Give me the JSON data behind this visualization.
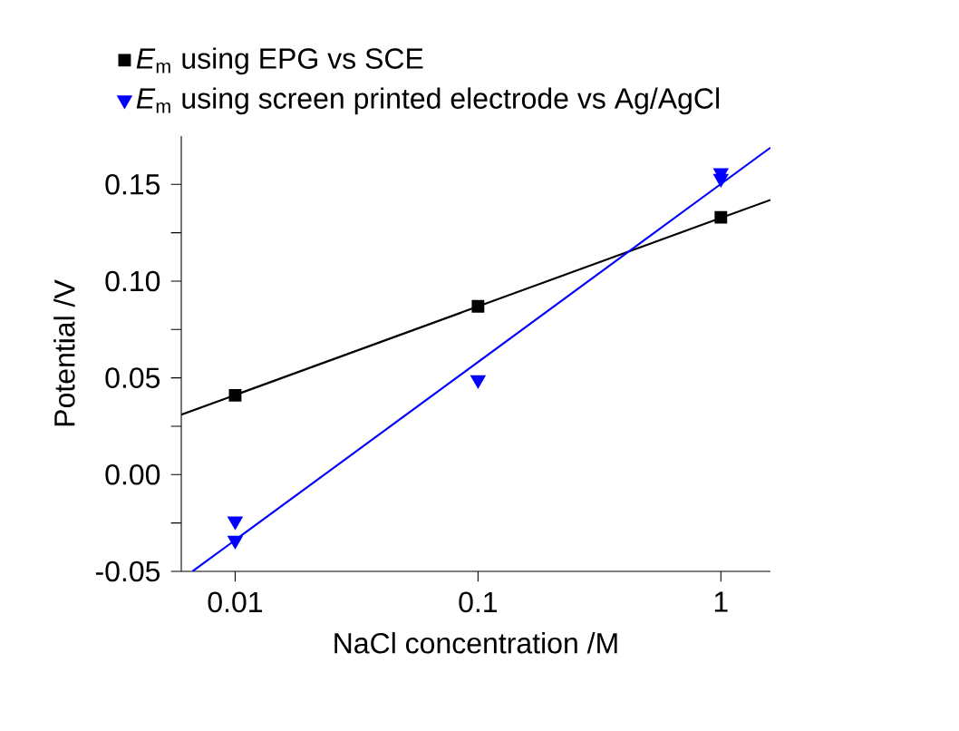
{
  "chart_data": {
    "type": "scatter",
    "xlabel": "NaCl concentration /M",
    "ylabel": "Potential /V",
    "log": "x",
    "xlim": [
      0.006,
      1.6
    ],
    "ylim": [
      -0.05,
      0.175
    ],
    "xticks": [
      0.01,
      0.1,
      1
    ],
    "yticks": [
      {
        "value": -0.05,
        "label": "-0.05"
      },
      {
        "value": -0.025,
        "label": null
      },
      {
        "value": 0,
        "label": "0.00"
      },
      {
        "value": 0.025,
        "label": null
      },
      {
        "value": 0.05,
        "label": "0.05"
      },
      {
        "value": 0.075,
        "label": null
      },
      {
        "value": 0.1,
        "label": "0.10"
      },
      {
        "value": 0.125,
        "label": null
      },
      {
        "value": 0.15,
        "label": "0.15"
      }
    ],
    "legend": "top",
    "grid": false,
    "series": [
      {
        "name": "*E*$_{m}$ using EPG vs SCE",
        "marker": "square",
        "color": "#000000",
        "x": [
          0.01,
          0.1,
          1
        ],
        "values": [
          0.041,
          0.087,
          0.133
        ]
      },
      {
        "name": "*E*$_{m}$ using screen printed electrode vs Ag/AgCl",
        "marker": "triangle",
        "color": "#0000ff",
        "x": [
          0.01,
          0.01,
          0.1,
          1,
          1
        ],
        "values": [
          -0.024,
          -0.034,
          0.049,
          0.156,
          0.153
        ]
      },
      {
        "type": "line",
        "marker": "none",
        "color": "#000000",
        "x": [
          0.006,
          1.6
        ],
        "values": [
          0.031,
          0.142
        ]
      },
      {
        "type": "line",
        "marker": "none",
        "color": "#0000ff",
        "x": [
          0.00667,
          1.6
        ],
        "values": [
          -0.05,
          0.169
        ]
      }
    ]
  }
}
